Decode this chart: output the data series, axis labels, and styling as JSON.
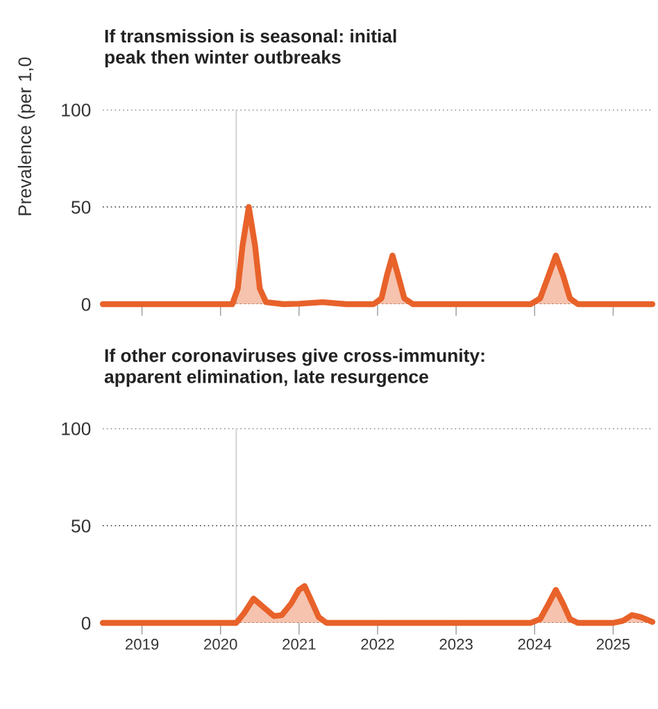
{
  "chart_data": [
    {
      "type": "area",
      "title": "If transmission is seasonal: initial\npeak then winter outbreaks",
      "ylabel": "Prevalence (per 1,0",
      "series": [
        {
          "color": "#e8622a",
          "x": [
            2018.5,
            2020.15,
            2020.22,
            2020.28,
            2020.36,
            2020.44,
            2020.5,
            2020.58,
            2020.8,
            2021.0,
            2021.3,
            2021.6,
            2021.95,
            2022.05,
            2022.12,
            2022.19,
            2022.26,
            2022.34,
            2022.45,
            2023.95,
            2024.07,
            2024.18,
            2024.27,
            2024.36,
            2024.45,
            2024.55,
            2025.5
          ],
          "values": [
            0,
            0,
            8,
            30,
            50,
            30,
            8,
            1,
            0,
            0.2,
            1,
            0,
            0,
            3,
            15,
            25,
            15,
            3,
            0,
            0,
            3,
            15,
            25,
            15,
            3,
            0,
            0
          ]
        }
      ],
      "xlim": [
        2018.5,
        2025.5
      ],
      "xticks": [
        {
          "value": 2019,
          "label": null
        },
        {
          "value": 2020,
          "label": null
        },
        {
          "value": 2021,
          "label": null
        },
        {
          "value": 2022,
          "label": null
        },
        {
          "value": 2023,
          "label": null
        },
        {
          "value": 2024,
          "label": null
        },
        {
          "value": 2025,
          "label": null
        }
      ],
      "ylim": [
        0,
        100
      ],
      "yticks": [
        0,
        50,
        100
      ],
      "grid": "y",
      "tick_labels": "y",
      "ref_lines": [
        {
          "axis": "x",
          "value": 2020.2,
          "color": "#cccccc"
        }
      ]
    },
    {
      "type": "area",
      "title": "If other coronaviruses give cross-immunity:\napparent elimination, late resurgence",
      "series": [
        {
          "color": "#e8622a",
          "x": [
            2018.5,
            2020.2,
            2020.3,
            2020.42,
            2020.55,
            2020.68,
            2020.78,
            2020.9,
            2021.0,
            2021.07,
            2021.15,
            2021.25,
            2021.35,
            2023.95,
            2024.07,
            2024.18,
            2024.27,
            2024.36,
            2024.45,
            2024.55,
            2025.0,
            2025.12,
            2025.24,
            2025.35,
            2025.5
          ],
          "values": [
            0,
            0,
            5,
            12.5,
            8,
            3.5,
            4,
            10,
            17,
            19,
            12,
            3,
            0,
            0,
            2,
            10,
            17,
            10,
            2,
            0,
            0,
            1,
            4,
            3,
            0.5
          ]
        }
      ],
      "xlim": [
        2018.5,
        2025.5
      ],
      "xticks": [
        2019,
        2020,
        2021,
        2022,
        2023,
        2024,
        2025
      ],
      "ylim": [
        0,
        100
      ],
      "yticks": [
        0,
        50,
        100
      ],
      "grid": "y",
      "ref_lines": [
        {
          "axis": "x",
          "value": 2020.2,
          "color": "#cccccc"
        }
      ]
    }
  ]
}
